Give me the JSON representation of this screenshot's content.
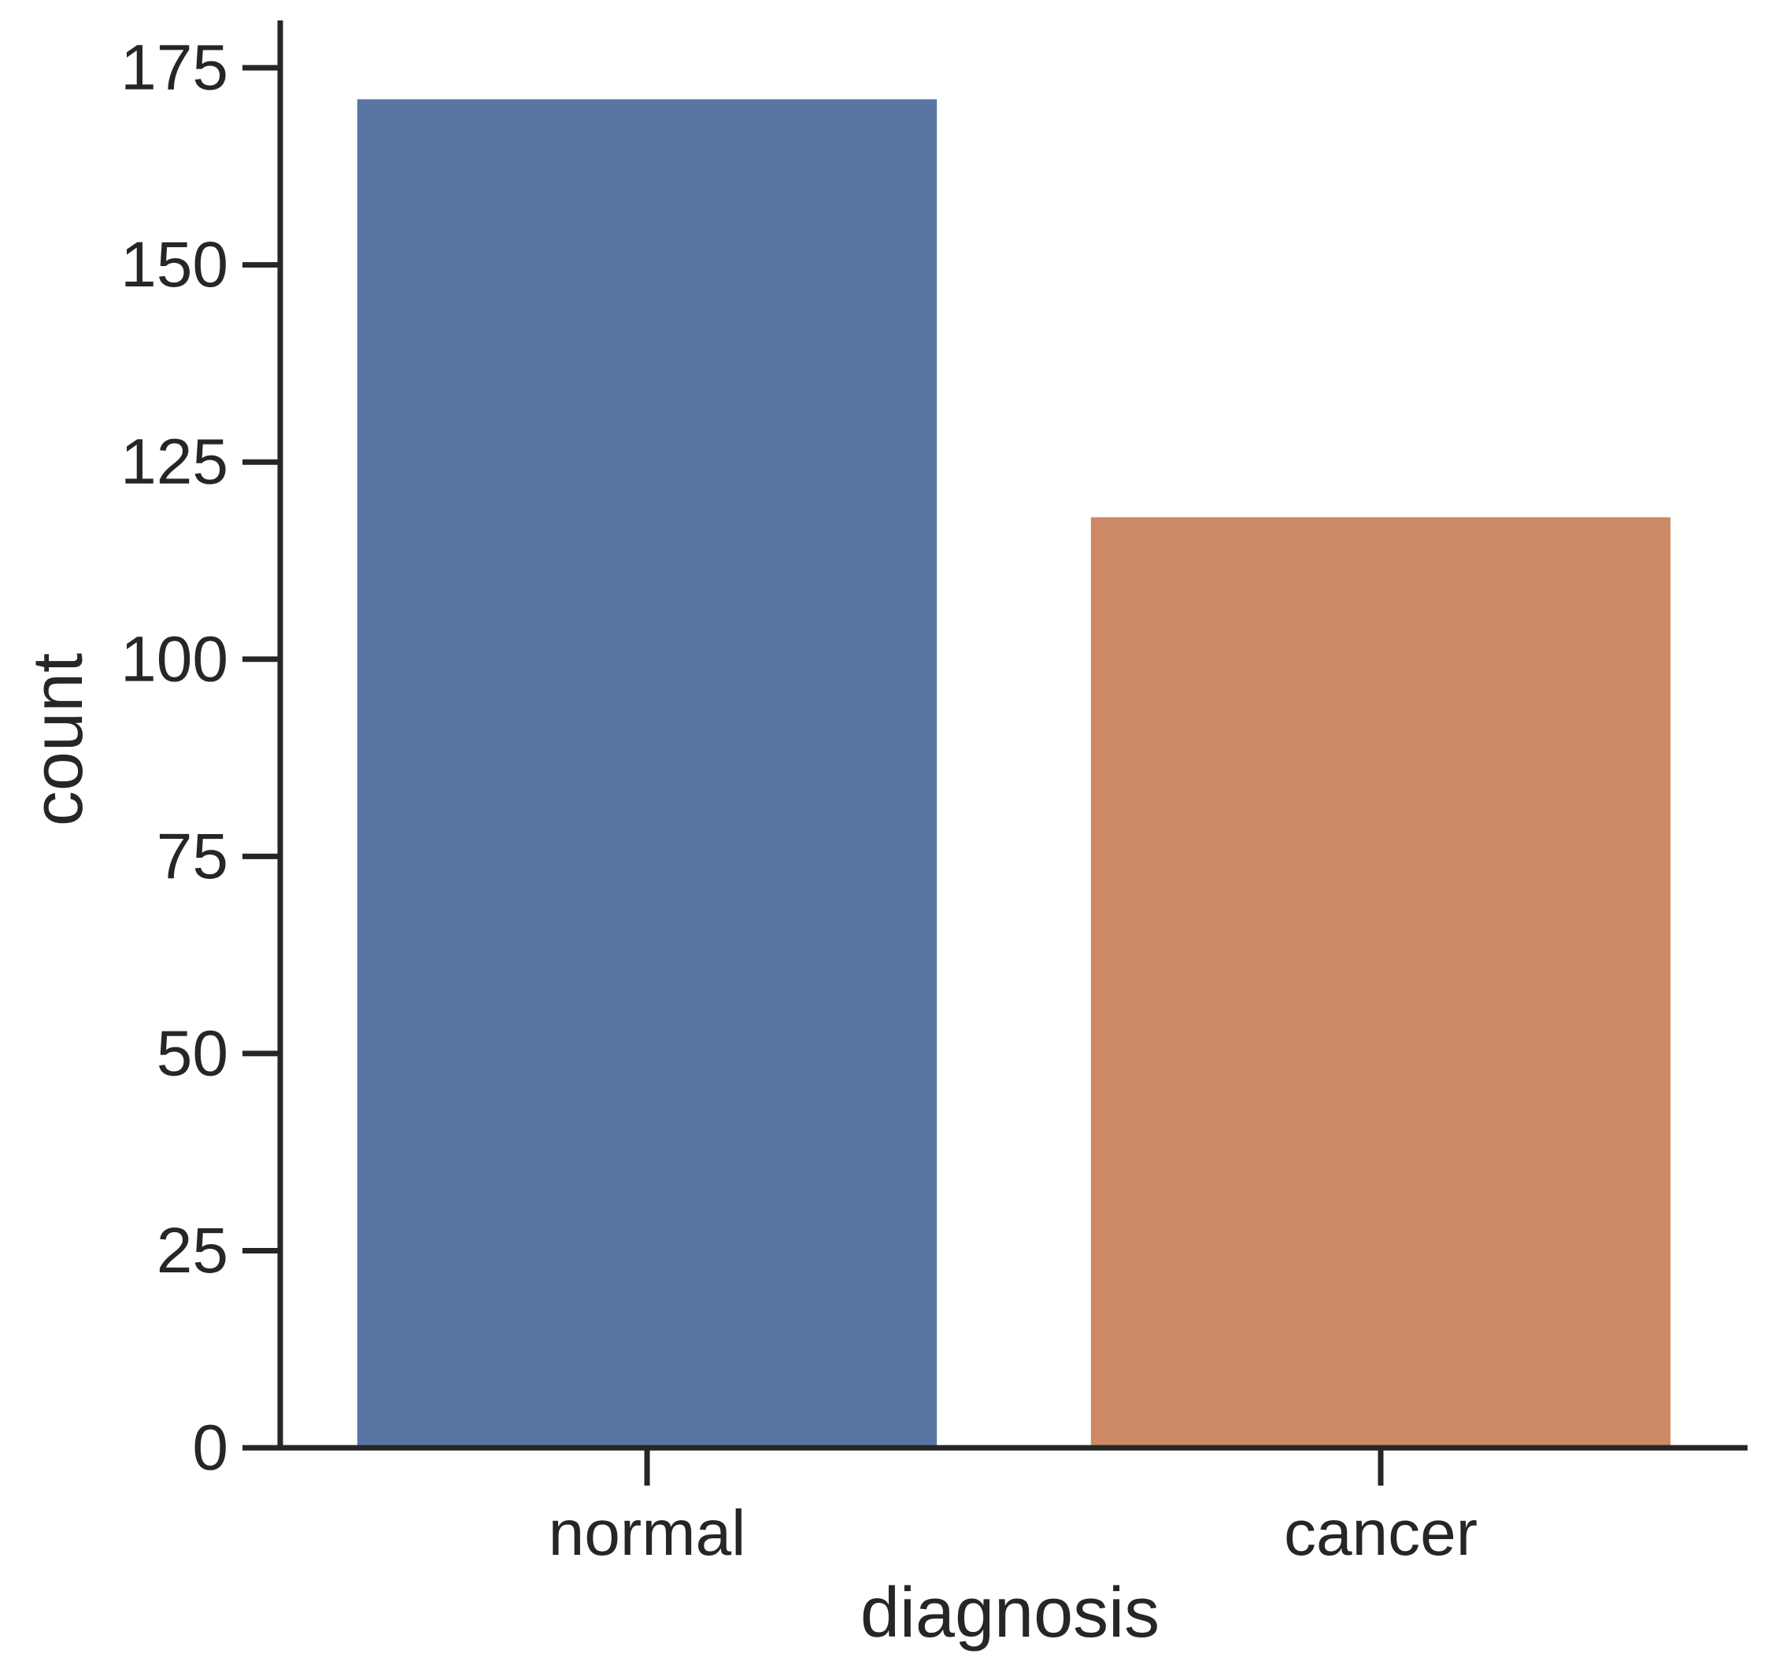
{
  "chart_data": {
    "type": "bar",
    "categories": [
      "normal",
      "cancer"
    ],
    "values": [
      171,
      118
    ],
    "colors": [
      "#5975a4",
      "#cc8963"
    ],
    "xlabel": "diagnosis",
    "ylabel": "count",
    "ylim": [
      0,
      181
    ],
    "yticks": [
      0,
      25,
      50,
      75,
      100,
      125,
      150,
      175
    ],
    "grid": false,
    "axis_color": "#262626"
  }
}
